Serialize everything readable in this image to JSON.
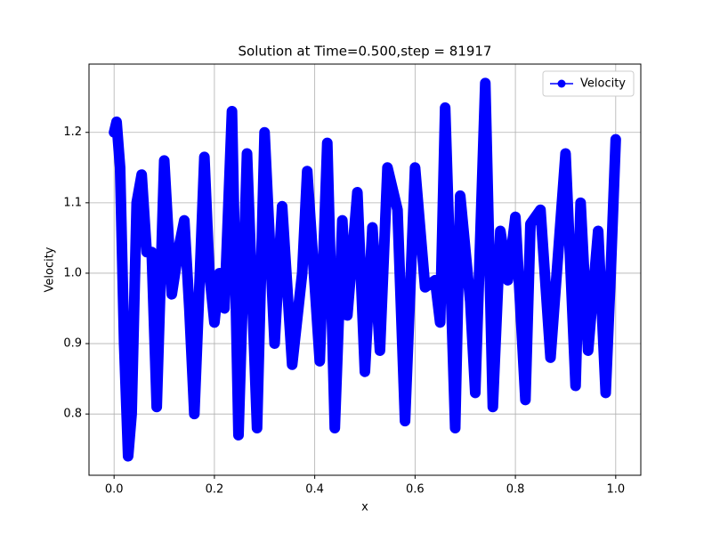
{
  "chart_data": {
    "type": "line",
    "title": "Solution at Time=0.500,step = 81917",
    "x_label": "x",
    "y_label": "Velocity",
    "x": [
      0,
      0.005,
      0.012,
      0.02,
      0.028,
      0.035,
      0.045,
      0.055,
      0.065,
      0.075,
      0.085,
      0.1,
      0.115,
      0.13,
      0.14,
      0.15,
      0.16,
      0.17,
      0.18,
      0.19,
      0.2,
      0.21,
      0.22,
      0.235,
      0.248,
      0.265,
      0.285,
      0.3,
      0.32,
      0.335,
      0.355,
      0.375,
      0.385,
      0.41,
      0.425,
      0.44,
      0.455,
      0.465,
      0.485,
      0.5,
      0.515,
      0.53,
      0.545,
      0.565,
      0.58,
      0.6,
      0.62,
      0.64,
      0.65,
      0.66,
      0.68,
      0.69,
      0.71,
      0.72,
      0.74,
      0.755,
      0.77,
      0.785,
      0.8,
      0.82,
      0.83,
      0.85,
      0.87,
      0.9,
      0.92,
      0.93,
      0.945,
      0.965,
      0.98,
      0.99,
      1.0
    ],
    "series": [
      {
        "name": "Velocity",
        "color": "#0000ff",
        "values": [
          1.2,
          1.215,
          1.15,
          0.9,
          0.74,
          0.8,
          1.1,
          1.14,
          1.03,
          1.03,
          0.81,
          1.16,
          0.97,
          1.04,
          1.075,
          0.95,
          0.8,
          0.98,
          1.165,
          1.0,
          0.93,
          1.0,
          0.95,
          1.23,
          0.77,
          1.17,
          0.78,
          1.2,
          0.9,
          1.095,
          0.87,
          1.0,
          1.145,
          0.875,
          1.185,
          0.78,
          1.075,
          0.94,
          1.115,
          0.86,
          1.065,
          0.89,
          1.15,
          1.09,
          0.79,
          1.15,
          0.98,
          0.99,
          0.93,
          1.235,
          0.78,
          1.11,
          0.96,
          0.83,
          1.27,
          0.81,
          1.06,
          0.99,
          1.08,
          0.82,
          1.07,
          1.09,
          0.88,
          1.17,
          0.84,
          1.1,
          0.89,
          1.06,
          0.83,
          1.0,
          1.19
        ]
      }
    ],
    "xlim": [
      -0.05,
      1.05
    ],
    "ylim": [
      0.713,
      1.297
    ],
    "xticks": [
      {
        "value": 0,
        "label": "0.0"
      },
      0.2,
      0.4,
      0.6,
      0.8,
      {
        "value": 1,
        "label": "1.0"
      }
    ],
    "yticks": [
      0.8,
      0.9,
      {
        "value": 1,
        "label": "1.0"
      },
      1.1,
      1.2
    ],
    "grid": true,
    "legend": "upper right"
  }
}
